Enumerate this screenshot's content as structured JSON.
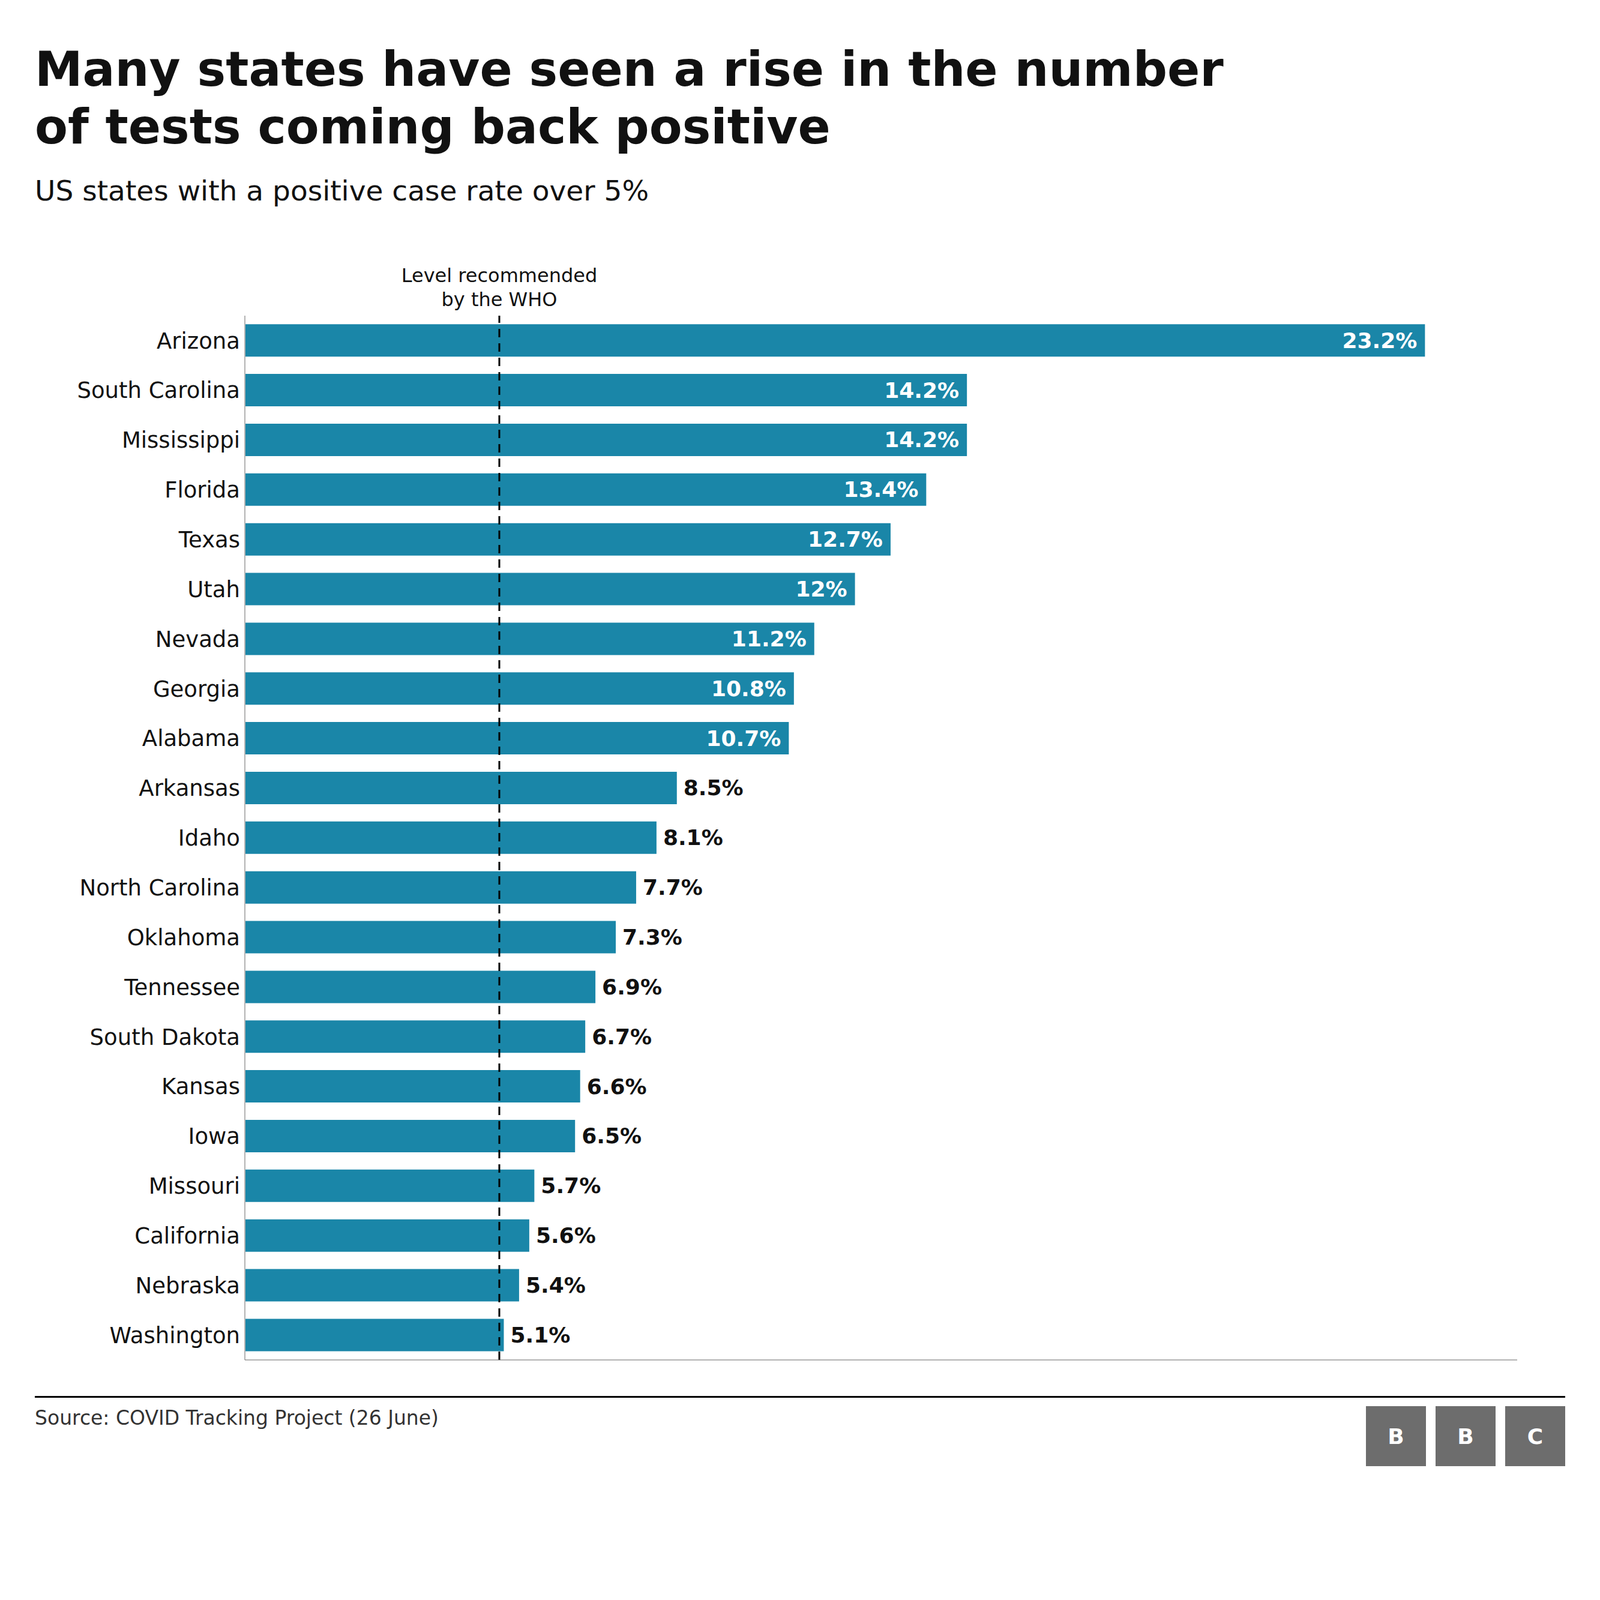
{
  "chart_data": {
    "type": "bar",
    "orientation": "horizontal",
    "title": "Many states have seen a rise in the number\nof tests coming back positive",
    "subtitle": "US states with a positive case rate over 5%",
    "source": "Source: COVID Tracking Project (26 June)",
    "logo": "BBC",
    "categories": [
      "Arizona",
      "South Carolina",
      "Mississippi",
      "Florida",
      "Texas",
      "Utah",
      "Nevada",
      "Georgia",
      "Alabama",
      "Arkansas",
      "Idaho",
      "North Carolina",
      "Oklahoma",
      "Tennessee",
      "South Dakota",
      "Kansas",
      "Iowa",
      "Missouri",
      "California",
      "Nebraska",
      "Washington"
    ],
    "values": [
      23.2,
      14.2,
      14.2,
      13.4,
      12.7,
      12.0,
      11.2,
      10.8,
      10.7,
      8.5,
      8.1,
      7.7,
      7.3,
      6.9,
      6.7,
      6.6,
      6.5,
      5.7,
      5.6,
      5.4,
      5.1
    ],
    "value_labels": [
      "23.2%",
      "14.2%",
      "14.2%",
      "13.4%",
      "12.7%",
      "12%",
      "11.2%",
      "10.8%",
      "10.7%",
      "8.5%",
      "8.1%",
      "7.7%",
      "7.3%",
      "6.9%",
      "6.7%",
      "6.6%",
      "6.5%",
      "5.7%",
      "5.6%",
      "5.4%",
      "5.1%"
    ],
    "data_labels": true,
    "color": "#1a86a8",
    "xlim": [
      0,
      25
    ],
    "tick_labels": "y",
    "grid": false,
    "annotations": [
      {
        "x": 5.0,
        "text": "Level recommended\nby the WHO",
        "line_style": "dashed"
      }
    ]
  }
}
